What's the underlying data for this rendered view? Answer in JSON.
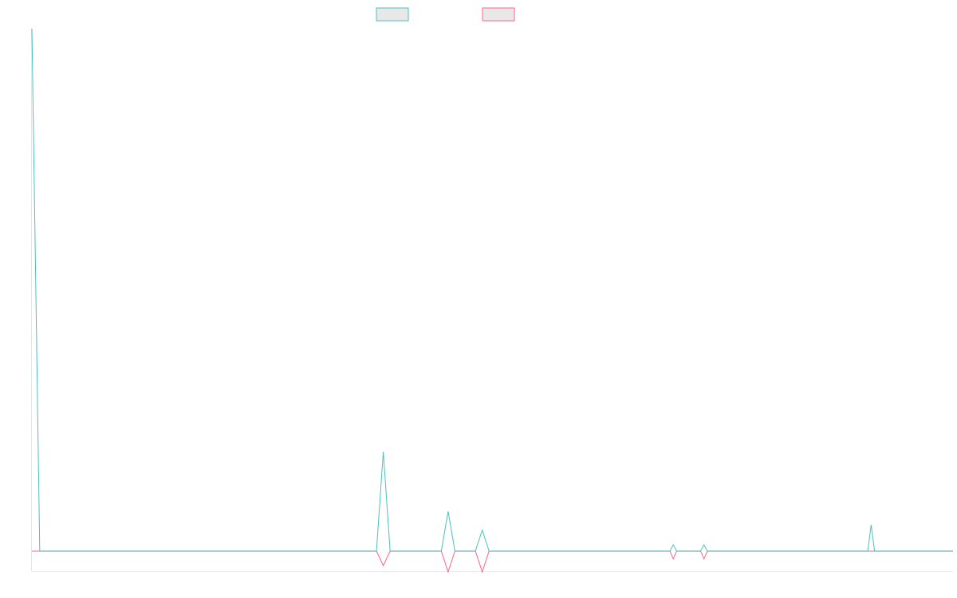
{
  "chart_data": {
    "type": "line",
    "x": [
      0,
      0.23,
      10.1,
      10.3,
      10.5,
      12.0,
      12.2,
      12.4,
      13.0,
      13.2,
      13.4,
      18.7,
      18.8,
      18.9,
      19.6,
      19.7,
      19.8,
      24.5,
      24.6,
      24.7,
      27
    ],
    "series": [
      {
        "name": "",
        "color": "#4bc0c0",
        "values": [
          1000,
          0,
          0,
          190,
          0,
          0,
          76,
          0,
          0,
          40,
          0,
          0,
          12,
          0,
          0,
          12,
          0,
          0,
          50,
          0,
          0
        ]
      },
      {
        "name": "",
        "color": "#ff6384",
        "values": [
          0,
          0,
          0,
          -28,
          0,
          0,
          -40,
          0,
          0,
          -40,
          0,
          0,
          -15,
          0,
          0,
          -15,
          0,
          0,
          0,
          0,
          0
        ]
      }
    ],
    "xlim": [
      0,
      27
    ],
    "ylim": [
      -38,
      1000
    ],
    "grid": false,
    "legend": "top-center",
    "title": "",
    "xlabel": "",
    "ylabel": ""
  }
}
